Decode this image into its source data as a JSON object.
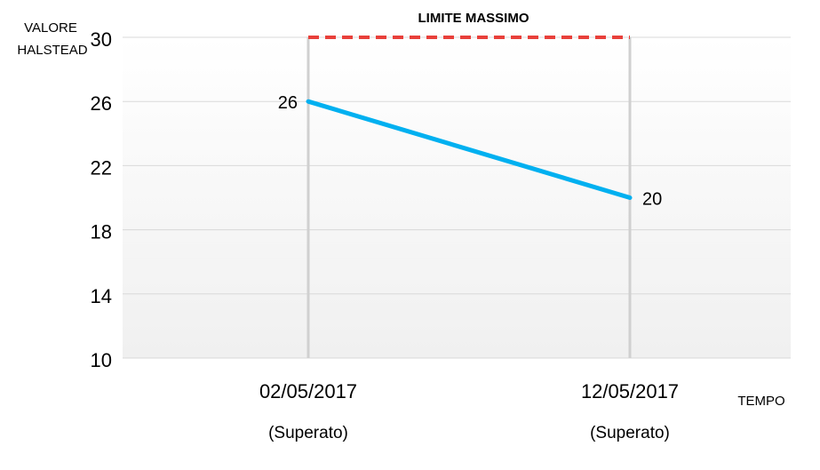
{
  "chart_data": {
    "type": "line",
    "title": "",
    "ylabel_lines": [
      "VALORE",
      "HALSTEAD"
    ],
    "xlabel": "TEMPO",
    "ylim": [
      10,
      30
    ],
    "yticks": [
      10,
      14,
      18,
      22,
      26,
      30
    ],
    "categories": [
      "02/05/2017",
      "12/05/2017"
    ],
    "category_sublabels": [
      "(Superato)",
      "(Superato)"
    ],
    "series": [
      {
        "values": [
          26,
          20
        ],
        "color": "#00b0f0"
      }
    ],
    "data_labels": [
      "26",
      "20"
    ],
    "threshold": {
      "label": "LIMITE MASSIMO",
      "value": 30,
      "color": "#e8403a",
      "style": "dashed"
    },
    "grid": true,
    "background_gradient": [
      "#ffffff",
      "#f0f0f0"
    ]
  }
}
